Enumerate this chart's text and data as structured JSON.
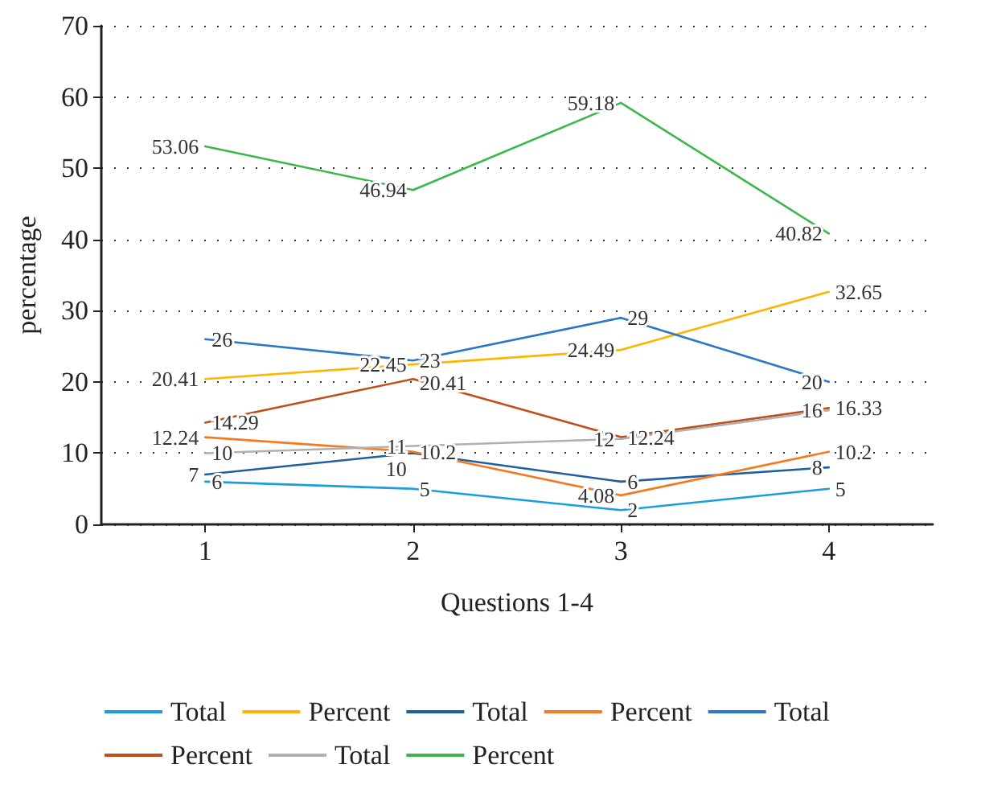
{
  "chart_data": {
    "type": "line",
    "xlabel": "Questions 1-4",
    "ylabel": "percentage",
    "categories": [
      "1",
      "2",
      "3",
      "4"
    ],
    "series": [
      {
        "name": "Total",
        "color": "#1a9de0",
        "values": [
          6,
          5,
          2,
          5
        ]
      },
      {
        "name": "Percent",
        "color": "#ffb400",
        "values": [
          20.41,
          22.45,
          24.49,
          32.65
        ]
      },
      {
        "name": "Total",
        "color": "#1f5fa0",
        "values": [
          7,
          10,
          6,
          8
        ]
      },
      {
        "name": "Percent",
        "color": "#f47920",
        "values": [
          12.24,
          10.2,
          4.08,
          10.2
        ]
      },
      {
        "name": "Total",
        "color": "#2a77c9",
        "values": [
          26,
          23,
          29,
          20
        ]
      },
      {
        "name": "Percent",
        "color": "#c0501a",
        "values": [
          14.29,
          20.41,
          12.24,
          16.33
        ]
      },
      {
        "name": "Total",
        "color": "#b0b0b0",
        "values": [
          10,
          11,
          12,
          16
        ]
      },
      {
        "name": "Percent",
        "color": "#3cb84a",
        "values": [
          53.06,
          46.94,
          59.18,
          40.82
        ]
      }
    ],
    "ylim": [
      0,
      70
    ],
    "yticks": [
      0,
      10,
      20,
      30,
      40,
      50,
      60,
      70
    ],
    "grid": "y",
    "legend": "bottom",
    "data_labels": true,
    "marker": "none",
    "line_style": "solid"
  }
}
